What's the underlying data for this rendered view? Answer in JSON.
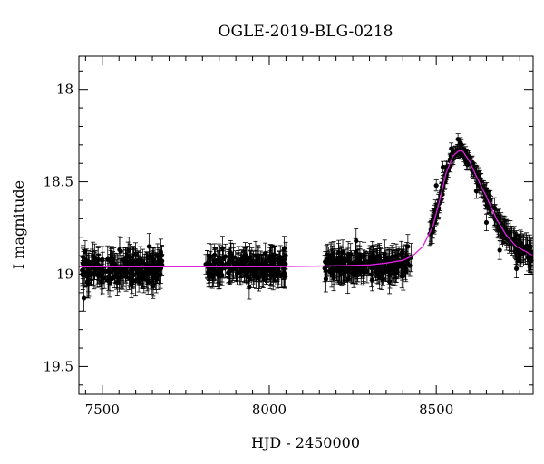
{
  "chart_data": {
    "type": "scatter",
    "title": "OGLE-2019-BLG-0218",
    "xlabel": "HJD - 2450000",
    "ylabel": "I magnitude",
    "xlim": [
      7430,
      8790
    ],
    "ylim": [
      19.65,
      17.82
    ],
    "y_inverted": true,
    "xticks": [
      7500,
      8000,
      8500
    ],
    "xtick_labels": [
      "7500",
      "8000",
      "8500"
    ],
    "yticks": [
      18,
      18.5,
      19,
      19.5
    ],
    "ytick_labels": [
      "18",
      "18.5",
      "19",
      "19.5"
    ],
    "grid": false,
    "legend": "none",
    "colors": {
      "points": "#000000",
      "model": "#e020e0"
    },
    "model": {
      "name": "",
      "baseline_mag": 18.96,
      "peak_x": 8572,
      "peak_mag": 18.33,
      "x": [
        7430,
        7600,
        7800,
        8000,
        8200,
        8300,
        8350,
        8400,
        8430,
        8460,
        8490,
        8510,
        8530,
        8550,
        8565,
        8572,
        8580,
        8600,
        8620,
        8650,
        8680,
        8710,
        8740,
        8790
      ],
      "y": [
        18.96,
        18.96,
        18.96,
        18.96,
        18.955,
        18.95,
        18.94,
        18.925,
        18.9,
        18.85,
        18.74,
        18.6,
        18.45,
        18.36,
        18.335,
        18.33,
        18.335,
        18.39,
        18.47,
        18.58,
        18.7,
        18.79,
        18.85,
        18.9
      ]
    },
    "observing_seasons": [
      {
        "x_range": [
          7440,
          7680
        ],
        "mean_mag": 18.97,
        "scatter": 0.07,
        "error": 0.07
      },
      {
        "x_range": [
          7810,
          8050
        ],
        "mean_mag": 18.96,
        "scatter": 0.06,
        "error": 0.065
      },
      {
        "x_range": [
          8165,
          8425
        ],
        "mean_mag": 18.95,
        "scatter": 0.06,
        "error": 0.065
      }
    ],
    "sample_points": [
      {
        "x": 7445,
        "y": 19.13,
        "err": 0.07
      },
      {
        "x": 7460,
        "y": 19.05,
        "err": 0.07
      },
      {
        "x": 7500,
        "y": 18.92,
        "err": 0.07
      },
      {
        "x": 7580,
        "y": 18.87,
        "err": 0.07
      },
      {
        "x": 7640,
        "y": 18.85,
        "err": 0.07
      },
      {
        "x": 7665,
        "y": 18.98,
        "err": 0.07
      },
      {
        "x": 7860,
        "y": 18.86,
        "err": 0.065
      },
      {
        "x": 7940,
        "y": 19.07,
        "err": 0.065
      },
      {
        "x": 8045,
        "y": 18.86,
        "err": 0.065
      },
      {
        "x": 8260,
        "y": 18.82,
        "err": 0.065
      },
      {
        "x": 8360,
        "y": 19.04,
        "err": 0.065
      },
      {
        "x": 8415,
        "y": 18.85,
        "err": 0.065
      },
      {
        "x": 8500,
        "y": 18.52,
        "err": 0.03
      },
      {
        "x": 8520,
        "y": 18.42,
        "err": 0.03
      },
      {
        "x": 8545,
        "y": 18.32,
        "err": 0.03
      },
      {
        "x": 8565,
        "y": 18.27,
        "err": 0.03
      },
      {
        "x": 8575,
        "y": 18.3,
        "err": 0.03
      },
      {
        "x": 8590,
        "y": 18.4,
        "err": 0.035
      },
      {
        "x": 8620,
        "y": 18.55,
        "err": 0.04
      },
      {
        "x": 8650,
        "y": 18.72,
        "err": 0.045
      },
      {
        "x": 8690,
        "y": 18.87,
        "err": 0.05
      },
      {
        "x": 8740,
        "y": 18.97,
        "err": 0.05
      },
      {
        "x": 8780,
        "y": 18.9,
        "err": 0.05
      }
    ]
  }
}
